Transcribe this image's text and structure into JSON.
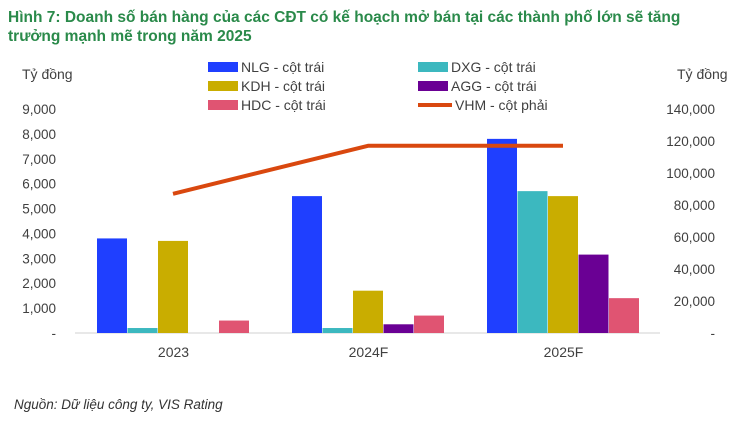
{
  "title": "Hình 7: Doanh số bán hàng của các CĐT có kế hoạch mở bán tại các thành phố lớn sẽ tăng trưởng mạnh mẽ trong năm 2025",
  "source": "Nguồn: Dữ liệu công ty, VIS Rating",
  "chart_data": {
    "type": "bar",
    "categories": [
      "2023",
      "2024F",
      "2025F"
    ],
    "ylabel_left": "Tỷ đồng",
    "ylabel_right": "Tỷ đồng",
    "ylim_left": [
      0,
      9000
    ],
    "ylim_right": [
      0,
      140000
    ],
    "yticks_left": [
      "-",
      "1,000",
      "2,000",
      "3,000",
      "4,000",
      "5,000",
      "6,000",
      "7,000",
      "8,000",
      "9,000"
    ],
    "yticks_right": [
      "-",
      "20,000",
      "40,000",
      "60,000",
      "80,000",
      "100,000",
      "120,000",
      "140,000"
    ],
    "grid": false,
    "legend_position": "top",
    "series": [
      {
        "name": "NLG - cột trái",
        "type": "bar",
        "axis": "left",
        "color": "#1f3fff",
        "values": [
          3800,
          5500,
          7800
        ]
      },
      {
        "name": "DXG - cột trái",
        "type": "bar",
        "axis": "left",
        "color": "#3cb8bf",
        "values": [
          200,
          200,
          5700
        ]
      },
      {
        "name": "KDH - cột trái",
        "type": "bar",
        "axis": "left",
        "color": "#c9ad00",
        "values": [
          3700,
          1700,
          5500
        ]
      },
      {
        "name": "AGG - cột trái",
        "type": "bar",
        "axis": "left",
        "color": "#6a0094",
        "values": [
          null,
          350,
          3150
        ]
      },
      {
        "name": "HDC - cột trái",
        "type": "bar",
        "axis": "left",
        "color": "#e05472",
        "values": [
          500,
          700,
          1400
        ]
      },
      {
        "name": "VHM - cột phải",
        "type": "line",
        "axis": "right",
        "color": "#d9480f",
        "values": [
          87000,
          117000,
          117000
        ]
      }
    ]
  }
}
